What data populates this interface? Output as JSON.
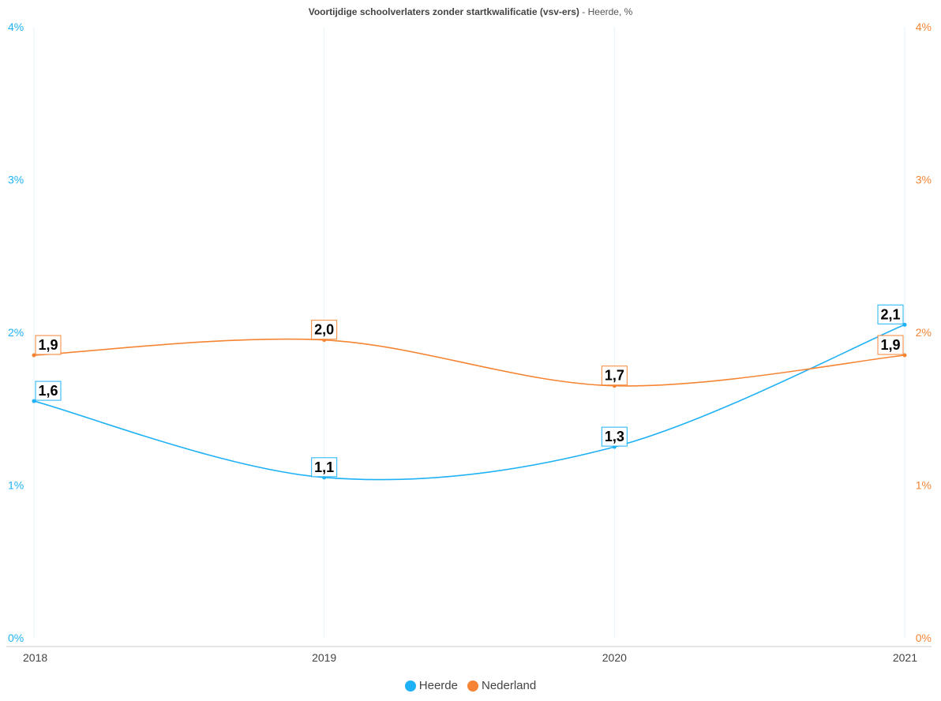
{
  "chart_data": {
    "type": "line",
    "title": "Voortijdige schoolverlaters zonder startkwalificatie (vsv-ers)",
    "subtitle": " - Heerde, %",
    "categories": [
      "2018",
      "2019",
      "2020",
      "2021"
    ],
    "series": [
      {
        "name": "Heerde",
        "values": [
          1.55,
          1.05,
          1.25,
          2.05
        ],
        "labels": [
          "1,6",
          "1,1",
          "1,3",
          "2,1"
        ],
        "color": "#1fb1f5",
        "axis": "left"
      },
      {
        "name": "Nederland",
        "values": [
          1.85,
          1.95,
          1.65,
          1.85
        ],
        "labels": [
          "1,9",
          "2,0",
          "1,7",
          "1,9"
        ],
        "color": "#f58534",
        "axis": "right"
      }
    ],
    "ylim": [
      0,
      4
    ],
    "y_ticks": [
      "0%",
      "1%",
      "2%",
      "3%",
      "4%"
    ],
    "y_ticks_right": [
      "0%",
      "1%",
      "2%",
      "3%",
      "4%"
    ],
    "grid": "vertical",
    "legend_position": "bottom-center"
  }
}
